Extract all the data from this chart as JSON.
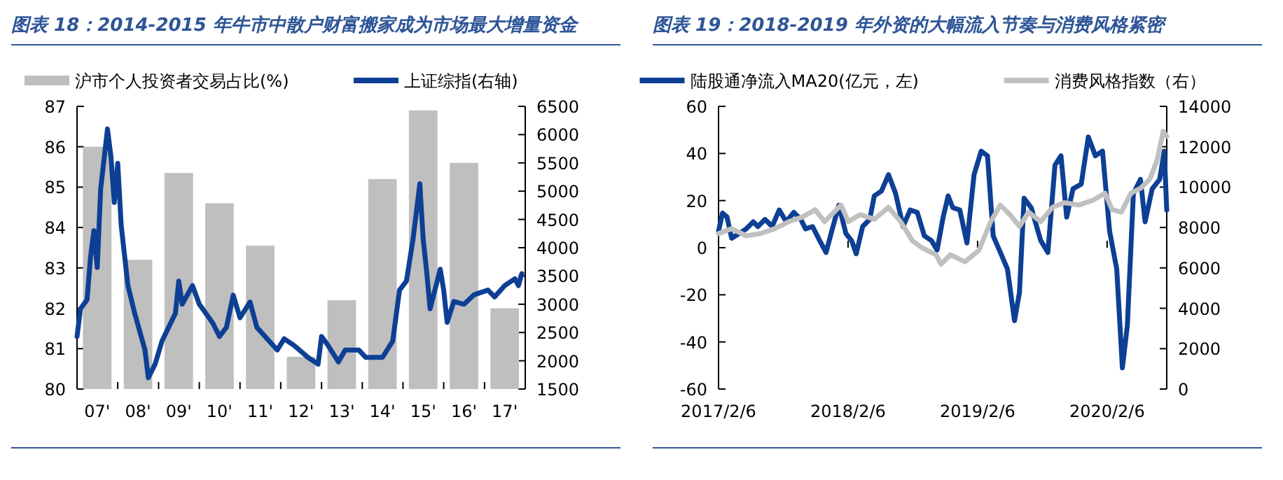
{
  "chart_data": [
    {
      "type": "bar",
      "title": "图表 18：2014-2015 年牛市中散户财富搬家成为市场最大增量资金",
      "legend": "top",
      "grid": false,
      "xlim": [
        "2007-01",
        "2018-01"
      ],
      "xticks": [
        {
          "value": "2007-07",
          "label": "07'"
        },
        {
          "value": "2008-07",
          "label": "08'"
        },
        {
          "value": "2009-07",
          "label": "09'"
        },
        {
          "value": "2010-07",
          "label": "10'"
        },
        {
          "value": "2011-07",
          "label": "11'"
        },
        {
          "value": "2012-07",
          "label": "12'"
        },
        {
          "value": "2013-07",
          "label": "13'"
        },
        {
          "value": "2014-07",
          "label": "14'"
        },
        {
          "value": "2015-07",
          "label": "15'"
        },
        {
          "value": "2016-07",
          "label": "16'"
        },
        {
          "value": "2017-07",
          "label": "17'"
        },
        {
          "value": "2008-01",
          "label": null
        },
        {
          "value": "2009-01",
          "label": null
        },
        {
          "value": "2010-01",
          "label": null
        },
        {
          "value": "2011-01",
          "label": null
        },
        {
          "value": "2012-01",
          "label": null
        },
        {
          "value": "2013-01",
          "label": null
        },
        {
          "value": "2014-01",
          "label": null
        },
        {
          "value": "2015-01",
          "label": null
        },
        {
          "value": "2016-01",
          "label": null
        },
        {
          "value": "2017-01",
          "label": null
        }
      ],
      "ylim": [
        80,
        87
      ],
      "yticks": [
        80,
        81,
        82,
        83,
        84,
        85,
        86,
        87
      ],
      "y2lim": [
        1500,
        6500
      ],
      "y2ticks": [
        1500,
        2000,
        2500,
        3000,
        3500,
        4000,
        4500,
        5000,
        5500,
        6000,
        6500
      ],
      "series": [
        {
          "name": "沪市个人投资者交易占比(%)",
          "color": "#bfbfbf",
          "x": [
            "2007-07",
            "2008-07",
            "2009-07",
            "2010-07",
            "2011-07",
            "2012-07",
            "2013-07",
            "2014-07",
            "2015-07",
            "2016-07",
            "2017-07"
          ],
          "values": [
            86.0,
            83.2,
            85.35,
            84.6,
            83.55,
            80.8,
            82.2,
            85.2,
            86.9,
            85.6,
            82.0
          ]
        },
        {
          "name": "上证综指(右轴)",
          "type": "line",
          "axis": "y2",
          "color": "#0d3f94",
          "x": [
            "2007-01",
            "2007-02",
            "2007-04",
            "2007-05",
            "2007-06",
            "2007-07",
            "2007-08",
            "2007-10",
            "2007-11",
            "2007-12",
            "2008-01",
            "2008-02",
            "2008-04",
            "2008-06",
            "2008-09",
            "2008-10",
            "2008-12",
            "2009-02",
            "2009-06",
            "2009-07",
            "2009-08",
            "2009-11",
            "2010-01",
            "2010-05",
            "2010-07",
            "2010-09",
            "2010-11",
            "2011-01",
            "2011-04",
            "2011-06",
            "2011-09",
            "2011-12",
            "2012-02",
            "2012-05",
            "2012-09",
            "2012-12",
            "2013-01",
            "2013-03",
            "2013-06",
            "2013-08",
            "2013-12",
            "2014-02",
            "2014-07",
            "2014-10",
            "2014-12",
            "2015-02",
            "2015-04",
            "2015-06",
            "2015-07",
            "2015-08",
            "2015-09",
            "2015-12",
            "2016-01",
            "2016-02",
            "2016-04",
            "2016-07",
            "2016-10",
            "2017-02",
            "2017-04",
            "2017-07",
            "2017-10",
            "2017-11",
            "2017-12"
          ],
          "values": [
            2430,
            2920,
            3080,
            3820,
            4300,
            3650,
            5040,
            6100,
            5610,
            4800,
            5490,
            4390,
            3330,
            2840,
            2190,
            1700,
            1940,
            2350,
            2840,
            3410,
            3000,
            3330,
            3000,
            2670,
            2430,
            2590,
            3160,
            2760,
            3040,
            2590,
            2390,
            2190,
            2390,
            2270,
            2060,
            1940,
            2430,
            2270,
            1980,
            2190,
            2190,
            2060,
            2060,
            2350,
            3250,
            3410,
            4150,
            5130,
            4150,
            3580,
            2920,
            3620,
            3250,
            2680,
            3050,
            3000,
            3170,
            3250,
            3130,
            3330,
            3450,
            3330,
            3540
          ]
        }
      ]
    },
    {
      "type": "line",
      "title": "图表 19：2018-2019 年外资的大幅流入节奏与消费风格紧密",
      "legend": "top",
      "grid": false,
      "xlim": [
        "2017-02-06",
        "2020-07-23"
      ],
      "xticks": [
        {
          "value": "2017-02-06",
          "label": "2017/2/6"
        },
        {
          "value": "2018-02-06",
          "label": "2018/2/6"
        },
        {
          "value": "2019-02-06",
          "label": "2019/2/6"
        },
        {
          "value": "2020-02-06",
          "label": "2020/2/6"
        }
      ],
      "ylim": [
        -60,
        60
      ],
      "yticks": [
        -60,
        -40,
        -20,
        0,
        20,
        40,
        60
      ],
      "y2lim": [
        0,
        14000
      ],
      "y2ticks": [
        0,
        2000,
        4000,
        6000,
        8000,
        10000,
        12000,
        14000
      ],
      "series": [
        {
          "name": "陆股通净流入MA20(亿元，左)",
          "color": "#0d3f94",
          "x": [
            "2017-02-06",
            "2017-02-17",
            "2017-03-02",
            "2017-03-15",
            "2017-04-05",
            "2017-04-25",
            "2017-05-15",
            "2017-05-28",
            "2017-06-17",
            "2017-07-07",
            "2017-07-27",
            "2017-08-16",
            "2017-09-06",
            "2017-09-26",
            "2017-10-09",
            "2017-10-29",
            "2017-11-18",
            "2017-12-06",
            "2017-12-22",
            "2018-01-11",
            "2018-01-31",
            "2018-02-16",
            "2018-03-01",
            "2018-03-19",
            "2018-04-08",
            "2018-04-21",
            "2018-05-11",
            "2018-05-31",
            "2018-06-20",
            "2018-07-11",
            "2018-07-31",
            "2018-08-20",
            "2018-09-09",
            "2018-09-29",
            "2018-10-15",
            "2018-11-01",
            "2018-11-15",
            "2018-11-28",
            "2018-12-18",
            "2019-01-07",
            "2019-01-27",
            "2019-02-16",
            "2019-03-06",
            "2019-03-22",
            "2019-04-11",
            "2019-05-01",
            "2019-05-21",
            "2019-06-04",
            "2019-06-17",
            "2019-07-07",
            "2019-08-03",
            "2019-08-23",
            "2019-09-12",
            "2019-09-29",
            "2019-10-15",
            "2019-11-02",
            "2019-11-25",
            "2019-12-15",
            "2020-01-04",
            "2020-01-24",
            "2020-02-13",
            "2020-03-04",
            "2020-03-20",
            "2020-04-03",
            "2020-04-20",
            "2020-05-10",
            "2020-05-23",
            "2020-06-12",
            "2020-07-03",
            "2020-07-16",
            "2020-07-23"
          ],
          "values": [
            7,
            14.7,
            13,
            4,
            6,
            8,
            11,
            9,
            12,
            9,
            16,
            11,
            15,
            12,
            8,
            9,
            3,
            -2,
            7,
            18,
            6,
            3,
            -2.6,
            9,
            12,
            22,
            24,
            31,
            23,
            9,
            16,
            15,
            5,
            3,
            -1,
            13,
            22,
            17,
            16,
            2,
            31,
            41,
            39,
            5,
            -2,
            -9,
            -31,
            -19,
            21,
            17,
            3,
            -2,
            35,
            39,
            13,
            25,
            27,
            47,
            39,
            41,
            7,
            -9,
            -51,
            -33,
            23,
            29,
            11,
            25,
            29,
            41,
            16
          ]
        },
        {
          "name": "消费风格指数（右）",
          "axis": "y2",
          "color": "#c0c0c0",
          "x": [
            "2017-02-06",
            "2017-03-15",
            "2017-04-25",
            "2017-06-04",
            "2017-07-14",
            "2017-08-23",
            "2017-10-02",
            "2017-11-05",
            "2017-12-02",
            "2018-01-17",
            "2018-02-07",
            "2018-03-12",
            "2018-04-21",
            "2018-05-31",
            "2018-07-04",
            "2018-08-06",
            "2018-09-02",
            "2018-10-12",
            "2018-10-26",
            "2018-11-21",
            "2019-01-01",
            "2019-02-10",
            "2019-03-15",
            "2019-04-11",
            "2019-05-08",
            "2019-06-04",
            "2019-06-30",
            "2019-08-03",
            "2019-09-05",
            "2019-10-09",
            "2019-11-18",
            "2019-12-28",
            "2020-01-31",
            "2020-02-20",
            "2020-03-17",
            "2020-04-13",
            "2020-05-10",
            "2020-06-06",
            "2020-06-26",
            "2020-07-13",
            "2020-07-23"
          ],
          "values": [
            7700,
            7940,
            7590,
            7700,
            7940,
            8290,
            8530,
            8880,
            8290,
            9110,
            8290,
            8640,
            8410,
            9000,
            8290,
            7350,
            7000,
            6650,
            6180,
            6650,
            6300,
            6880,
            8290,
            9110,
            8640,
            8060,
            8760,
            8290,
            9000,
            9230,
            9110,
            9350,
            9700,
            8880,
            8760,
            9700,
            9940,
            10410,
            11350,
            12760,
            12520
          ]
        }
      ]
    }
  ]
}
